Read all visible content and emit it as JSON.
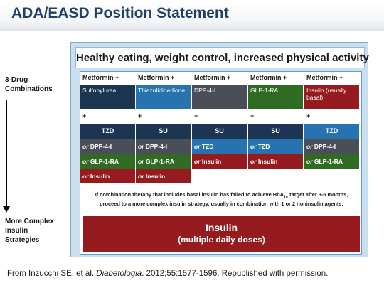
{
  "title": "ADA/EASD Position Statement",
  "side": {
    "top_line1": "3-Drug",
    "top_line2": "Combinations",
    "bottom_line1": "More Complex",
    "bottom_line2": "Insulin",
    "bottom_line3": "Strategies"
  },
  "healthy": "Healthy eating, weight control, increased physical activity",
  "columns": [
    {
      "header": "Metformin +",
      "drug": "Sulfonylurea",
      "drug_color": "#1b3553",
      "plus": "+",
      "class": "TZD",
      "class_color": "#1b3553",
      "alt1_or": "or",
      "alt1": " DPP-4-I",
      "alt1_color": "#4a4f57",
      "alt2_or": "or",
      "alt2": " GLP-1-RA",
      "alt2_color": "#2f6b22",
      "alt3_or": "or",
      "alt3": " Insulin",
      "alt3_color": "#951b1e"
    },
    {
      "header": "Metformin +",
      "drug": "Thiazolidinedione",
      "drug_color": "#2773b0",
      "plus": "+",
      "class": "SU",
      "class_color": "#1b3553",
      "alt1_or": "or",
      "alt1": " DPP-4-I",
      "alt1_color": "#4a4f57",
      "alt2_or": "or",
      "alt2": " GLP-1-RA",
      "alt2_color": "#2f6b22",
      "alt3_or": "or",
      "alt3": " Insulin",
      "alt3_color": "#951b1e"
    },
    {
      "header": "Metformin +",
      "drug": "DPP-4-I",
      "drug_color": "#4a4f57",
      "plus": "+",
      "class": "SU",
      "class_color": "#1b3553",
      "alt1_or": "or",
      "alt1": " TZD",
      "alt1_color": "#2773b0",
      "alt2_or": "or",
      "alt2": " Insulin",
      "alt2_color": "#951b1e"
    },
    {
      "header": "Metformin +",
      "drug": "GLP-1-RA",
      "drug_color": "#2f6b22",
      "plus": "+",
      "class": "SU",
      "class_color": "#1b3553",
      "alt1_or": "or",
      "alt1": " TZD",
      "alt1_color": "#2773b0",
      "alt2_or": "or",
      "alt2": " Insulin",
      "alt2_color": "#951b1e"
    },
    {
      "header": "Metformin +",
      "drug": "Insulin (usually basal)",
      "drug_color": "#951b1e",
      "plus": "+",
      "class": "TZD",
      "class_color": "#2773b0",
      "alt1_or": "or",
      "alt1": " DPP-4-I",
      "alt1_color": "#4a4f57",
      "alt2_or": "or",
      "alt2": " GLP-1-RA",
      "alt2_color": "#2f6b22"
    }
  ],
  "note_part1": "If combination therapy that includes basal insulin has failed to achieve HbA",
  "note_sub": "1c",
  "note_part2": " target after 3-6 months,",
  "note_line2": "proceed to a more complex insulin strategy, usually in combination with 1 or 2 noninsulin agents:",
  "insulin_title": "Insulin",
  "insulin_sub": "(multiple daily doses)",
  "footer_prefix": "From Inzucchi SE, et al. ",
  "footer_journal": "Diabetologia",
  "footer_suffix": ". 2012;55:1577-1596. Republished with permission."
}
